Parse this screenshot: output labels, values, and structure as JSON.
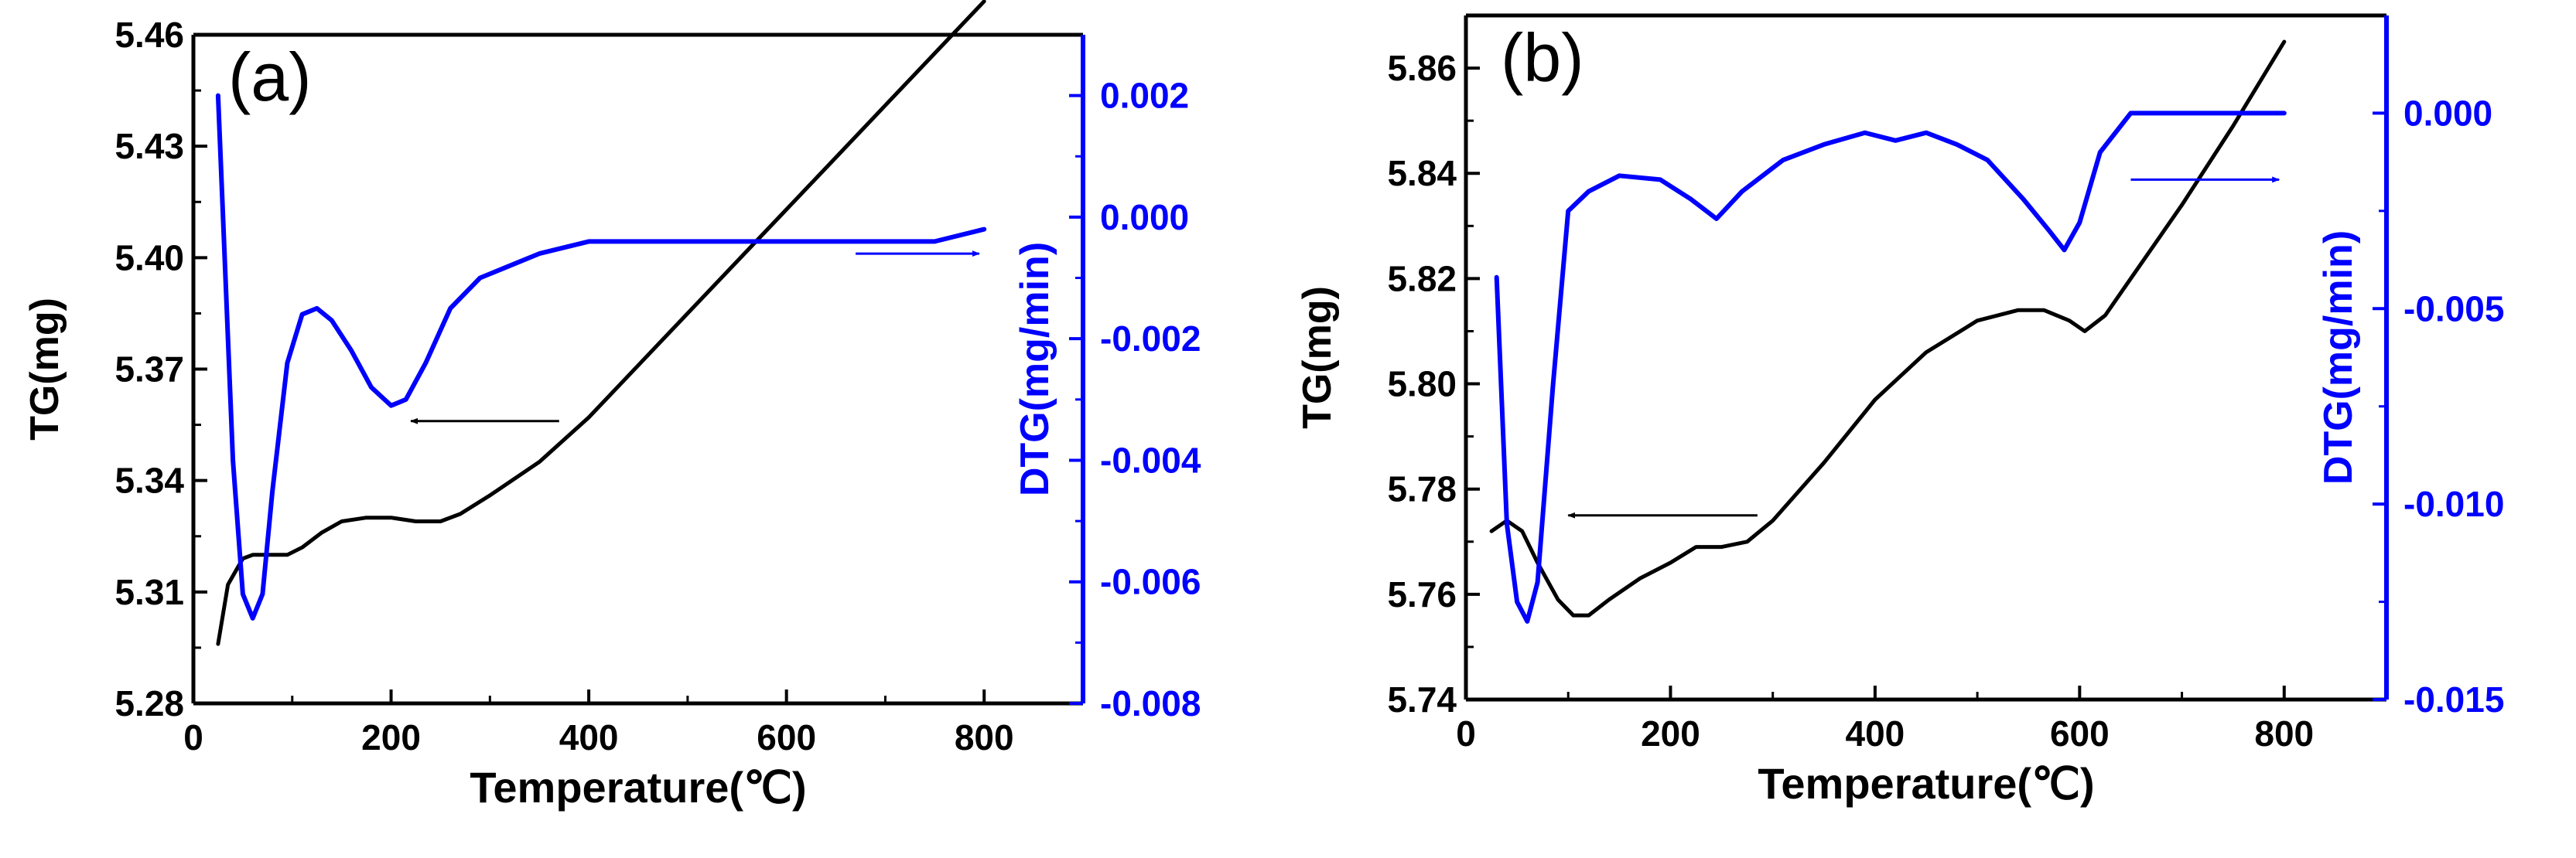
{
  "colors": {
    "tg": "#000000",
    "dtg": "#0000ff",
    "axis_black": "#000000",
    "axis_blue": "#0000ff"
  },
  "chart_data": [
    {
      "type": "line",
      "panel_label": "(a)",
      "xlabel": "Temperature(℃)",
      "ylabel": "TG(mg)",
      "y2label": "DTG(mg/min)",
      "xlim": [
        0,
        900
      ],
      "ylim": [
        5.28,
        5.46
      ],
      "y2lim": [
        -0.008,
        0.003
      ],
      "xticks": [
        0,
        200,
        400,
        600,
        800
      ],
      "xtick_labels": [
        "0",
        "200",
        "400",
        "600",
        "800"
      ],
      "yticks": [
        5.28,
        5.31,
        5.34,
        5.37,
        5.4,
        5.43,
        5.46
      ],
      "ytick_labels": [
        "5.28",
        "5.31",
        "5.34",
        "5.37",
        "5.40",
        "5.43",
        "5.46"
      ],
      "y2ticks": [
        -0.008,
        -0.006,
        -0.004,
        -0.002,
        0.0,
        0.002
      ],
      "y2tick_labels": [
        "-0.008",
        "-0.006",
        "-0.004",
        "-0.002",
        "0.000",
        "0.002"
      ],
      "series": [
        {
          "name": "TG",
          "axis": "left",
          "color": "#000000",
          "x": [
            25,
            35,
            50,
            60,
            75,
            95,
            110,
            130,
            150,
            175,
            200,
            225,
            250,
            270,
            300,
            350,
            400,
            450,
            500,
            550,
            600,
            650,
            700,
            750,
            800
          ],
          "y": [
            5.296,
            5.312,
            5.319,
            5.32,
            5.32,
            5.32,
            5.322,
            5.326,
            5.329,
            5.33,
            5.33,
            5.329,
            5.329,
            5.331,
            5.336,
            5.345,
            5.357,
            5.371,
            5.385,
            5.399,
            5.413,
            5.427,
            5.441,
            5.455,
            5.469
          ]
        },
        {
          "name": "DTG",
          "axis": "right",
          "color": "#0000ff",
          "x": [
            25,
            30,
            40,
            50,
            60,
            70,
            80,
            95,
            110,
            125,
            140,
            160,
            180,
            200,
            215,
            235,
            260,
            290,
            320,
            350,
            400,
            450,
            500,
            550,
            600,
            650,
            700,
            750,
            800
          ],
          "y": [
            0.002,
            0.0,
            -0.004,
            -0.0062,
            -0.0066,
            -0.0062,
            -0.0045,
            -0.0024,
            -0.0016,
            -0.0015,
            -0.0017,
            -0.0022,
            -0.0028,
            -0.0031,
            -0.003,
            -0.0024,
            -0.0015,
            -0.001,
            -0.0008,
            -0.0006,
            -0.0004,
            -0.0004,
            -0.0004,
            -0.0004,
            -0.0004,
            -0.0004,
            -0.0004,
            -0.0004,
            -0.0002
          ]
        }
      ],
      "arrows": [
        {
          "axis": "left",
          "from": [
            370,
            5.356
          ],
          "to": [
            220,
            5.356
          ]
        },
        {
          "axis": "right",
          "from": [
            670,
            -0.0006
          ],
          "to": [
            795,
            -0.0006
          ]
        }
      ]
    },
    {
      "type": "line",
      "panel_label": "(b)",
      "xlabel": "Temperature(℃)",
      "ylabel": "TG(mg)",
      "y2label": "DTG(mg/min)",
      "xlim": [
        0,
        900
      ],
      "ylim": [
        5.74,
        5.87
      ],
      "y2lim": [
        -0.015,
        0.0025
      ],
      "xticks": [
        0,
        200,
        400,
        600,
        800
      ],
      "xtick_labels": [
        "0",
        "200",
        "400",
        "600",
        "800"
      ],
      "yticks": [
        5.74,
        5.76,
        5.78,
        5.8,
        5.82,
        5.84,
        5.86
      ],
      "ytick_labels": [
        "5.74",
        "5.76",
        "5.78",
        "5.80",
        "5.82",
        "5.84",
        "5.86"
      ],
      "y2ticks": [
        -0.015,
        -0.01,
        -0.005,
        0.0
      ],
      "y2tick_labels": [
        "-0.015",
        "-0.010",
        "-0.005",
        "0.000"
      ],
      "series": [
        {
          "name": "TG",
          "axis": "left",
          "color": "#000000",
          "x": [
            25,
            40,
            55,
            70,
            90,
            105,
            120,
            140,
            170,
            200,
            225,
            250,
            275,
            300,
            350,
            400,
            450,
            500,
            540,
            565,
            590,
            605,
            625,
            650,
            700,
            750,
            800
          ],
          "y": [
            5.772,
            5.774,
            5.772,
            5.766,
            5.759,
            5.756,
            5.756,
            5.759,
            5.763,
            5.766,
            5.769,
            5.769,
            5.77,
            5.774,
            5.785,
            5.797,
            5.806,
            5.812,
            5.814,
            5.814,
            5.812,
            5.81,
            5.813,
            5.82,
            5.834,
            5.849,
            5.865
          ]
        },
        {
          "name": "DTG",
          "axis": "right",
          "color": "#0000ff",
          "x": [
            30,
            40,
            50,
            60,
            70,
            85,
            100,
            120,
            150,
            190,
            220,
            245,
            270,
            310,
            350,
            390,
            420,
            450,
            480,
            510,
            545,
            570,
            585,
            600,
            620,
            650,
            700,
            750,
            800
          ],
          "y": [
            -0.0042,
            -0.0105,
            -0.0125,
            -0.013,
            -0.012,
            -0.007,
            -0.0025,
            -0.002,
            -0.0016,
            -0.0017,
            -0.0022,
            -0.0027,
            -0.002,
            -0.0012,
            -0.0008,
            -0.0005,
            -0.0007,
            -0.0005,
            -0.0008,
            -0.0012,
            -0.0022,
            -0.003,
            -0.0035,
            -0.0028,
            -0.001,
            0.0,
            0.0,
            0.0,
            0.0
          ]
        }
      ],
      "arrows": [
        {
          "axis": "left",
          "from": [
            285,
            5.775
          ],
          "to": [
            100,
            5.775
          ]
        },
        {
          "axis": "right",
          "from": [
            650,
            -0.0017
          ],
          "to": [
            795,
            -0.0017
          ]
        }
      ]
    }
  ]
}
